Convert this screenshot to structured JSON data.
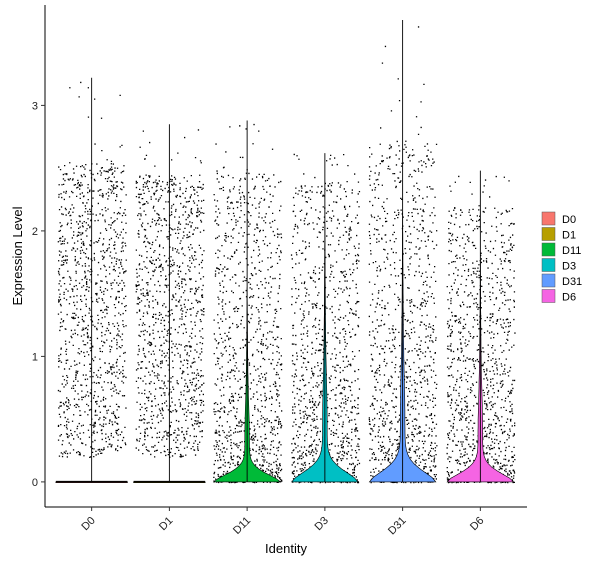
{
  "chart_data": {
    "type": "violin",
    "xlabel": "Identity",
    "ylabel": "Expression Level",
    "ylim": [
      -0.2,
      3.8
    ],
    "yticks": [
      0,
      1,
      2,
      3
    ],
    "legend_placement": "right",
    "grid": false,
    "categories": [
      "D0",
      "D1",
      "D11",
      "D3",
      "D31",
      "D6"
    ],
    "series": [
      {
        "name": "D0",
        "color": "#F8766D",
        "max": 3.22,
        "dense_top": 2.55,
        "violin_height": 0.0,
        "violin_width": 0.0
      },
      {
        "name": "D1",
        "color": "#B79F00",
        "max": 2.85,
        "dense_top": 2.45,
        "violin_height": 0.0,
        "violin_width": 0.0
      },
      {
        "name": "D11",
        "color": "#00BA38",
        "max": 2.88,
        "dense_top": 2.5,
        "violin_height": 1.55,
        "violin_width": 0.95
      },
      {
        "name": "D3",
        "color": "#00BFC4",
        "max": 2.62,
        "dense_top": 2.4,
        "violin_height": 2.05,
        "violin_width": 0.95
      },
      {
        "name": "D31",
        "color": "#619CFF",
        "max": 3.68,
        "dense_top": 2.7,
        "violin_height": 2.15,
        "violin_width": 0.95
      },
      {
        "name": "D6",
        "color": "#F564E3",
        "max": 2.48,
        "dense_top": 2.2,
        "violin_height": 1.75,
        "violin_width": 0.95
      }
    ]
  }
}
